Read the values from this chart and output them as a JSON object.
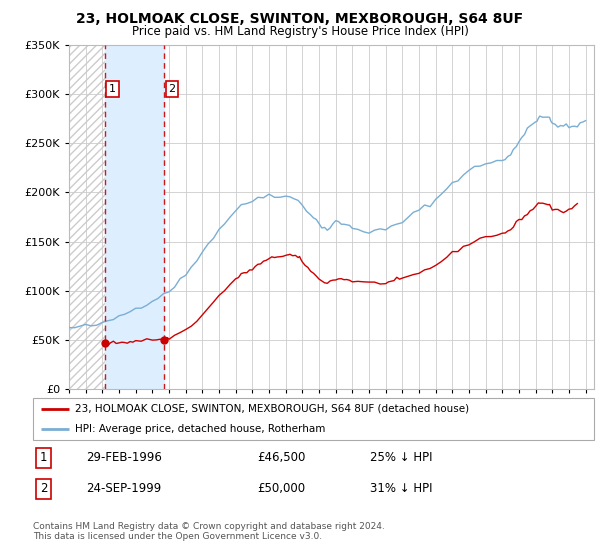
{
  "title": "23, HOLMOAK CLOSE, SWINTON, MEXBOROUGH, S64 8UF",
  "subtitle": "Price paid vs. HM Land Registry's House Price Index (HPI)",
  "legend_line1": "23, HOLMOAK CLOSE, SWINTON, MEXBOROUGH, S64 8UF (detached house)",
  "legend_line2": "HPI: Average price, detached house, Rotherham",
  "transactions": [
    {
      "num": 1,
      "date": "29-FEB-1996",
      "price": 46500,
      "price_str": "£46,500",
      "pct": "25%",
      "dir": "↓",
      "x_year": 1996.16
    },
    {
      "num": 2,
      "date": "24-SEP-1999",
      "price": 50000,
      "price_str": "£50,000",
      "pct": "31%",
      "dir": "↓",
      "x_year": 1999.72
    }
  ],
  "footer": "Contains HM Land Registry data © Crown copyright and database right 2024.\nThis data is licensed under the Open Government Licence v3.0.",
  "hpi_color": "#7aaed4",
  "price_color": "#cc0000",
  "highlight_color": "#ddeeff",
  "ylim": [
    0,
    350000
  ],
  "xlim": [
    1994.0,
    2025.5
  ],
  "yticks": [
    0,
    50000,
    100000,
    150000,
    200000,
    250000,
    300000,
    350000
  ]
}
